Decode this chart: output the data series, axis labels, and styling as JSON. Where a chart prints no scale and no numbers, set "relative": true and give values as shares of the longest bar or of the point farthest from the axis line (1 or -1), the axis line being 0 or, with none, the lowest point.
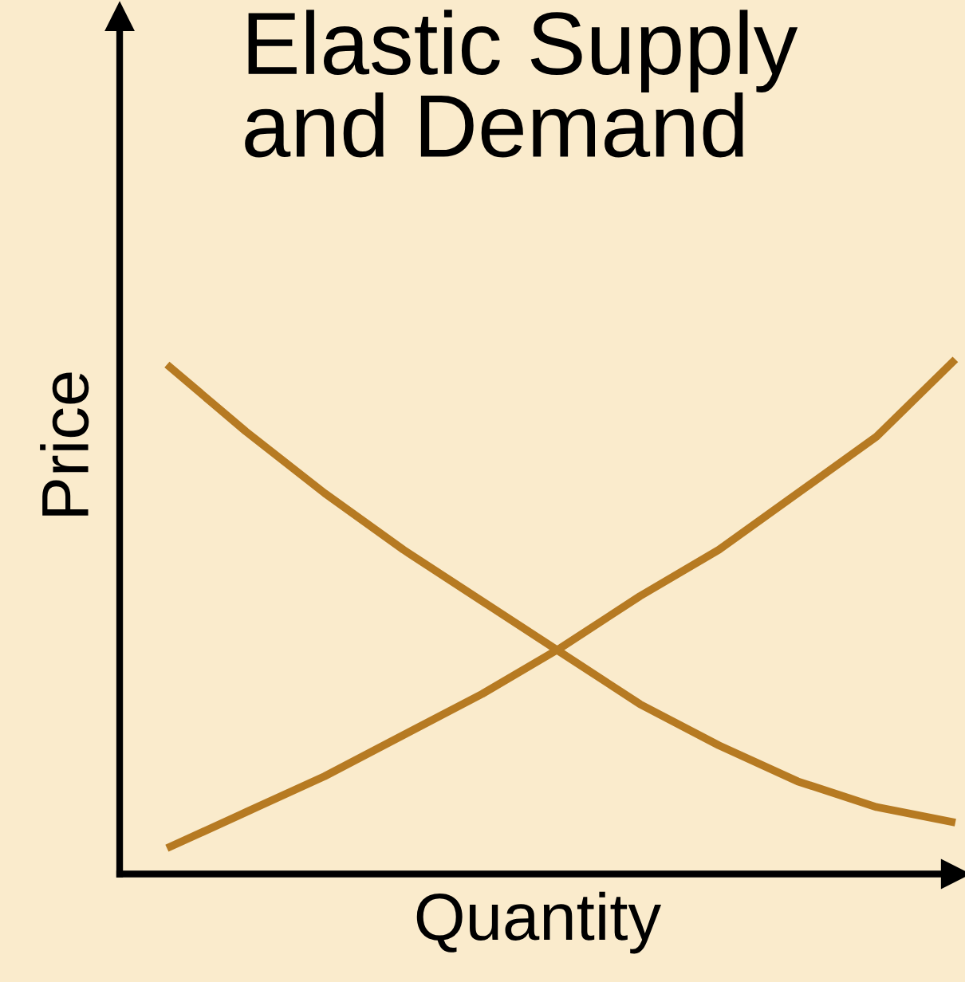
{
  "chart_data": {
    "type": "line",
    "title": "Elastic Supply\nand Demand",
    "xlabel": "Quantity",
    "ylabel": "Price",
    "relative": true,
    "marker": "none",
    "line_style": "solid",
    "categories": [
      null,
      null,
      null,
      null,
      null,
      null,
      null,
      null,
      null,
      null,
      null
    ],
    "series": [
      {
        "color": "#b67a22",
        "values": [
          0.99,
          0.86,
          0.74,
          0.63,
          0.53,
          0.43,
          0.33,
          0.25,
          0.18,
          0.13,
          0.1
        ]
      },
      {
        "color": "#b67a22",
        "values": [
          0.05,
          0.12,
          0.19,
          0.27,
          0.35,
          0.44,
          0.54,
          0.63,
          0.74,
          0.85,
          1.0
        ]
      }
    ]
  }
}
